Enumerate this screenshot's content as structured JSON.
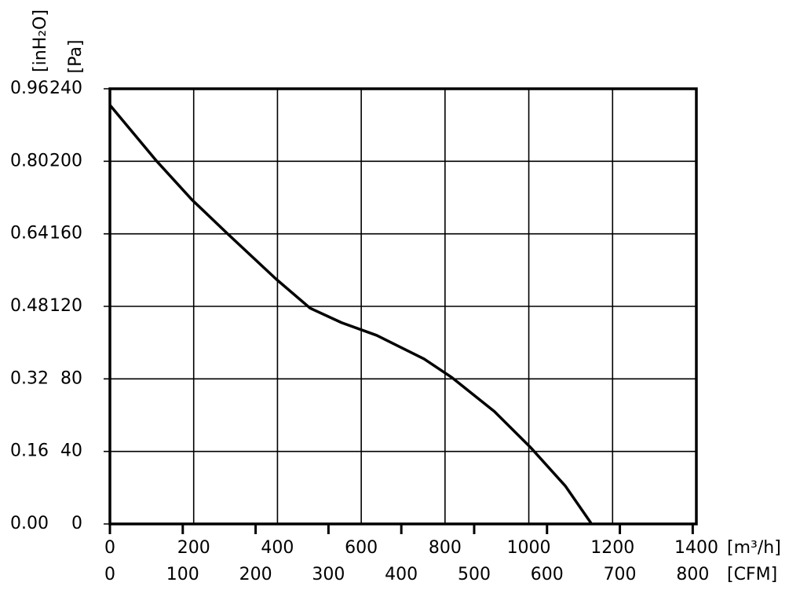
{
  "chart_data": {
    "type": "line",
    "y2_label": "[inH₂O]",
    "y_label": "[Pa]",
    "x_label": "[m³/h]",
    "x2_label": "[CFM]",
    "x": [
      0,
      112,
      195,
      281,
      397,
      478,
      553,
      637,
      750,
      815,
      918,
      1005,
      1087,
      1147,
      1149
    ],
    "series": [
      {
        "color": "#000000",
        "values": [
          231,
          200,
          179,
          160,
          135,
          119,
          111,
          104,
          91,
          81,
          62,
          42,
          21,
          1,
          0
        ]
      }
    ],
    "xlim": [
      0,
      1400
    ],
    "xticks": [
      0,
      200,
      400,
      600,
      800,
      1000,
      1200,
      1400
    ],
    "x2lim": [
      0,
      805
    ],
    "x2ticks": [
      0,
      100,
      200,
      300,
      400,
      500,
      600,
      700,
      800
    ],
    "ylim": [
      0,
      240
    ],
    "yticks": [
      0,
      40,
      80,
      120,
      160,
      200,
      240
    ],
    "y2lim": [
      0,
      0.96
    ],
    "y2ticks": [
      {
        "value": 0,
        "label": "0.00"
      },
      0.16,
      0.32,
      0.48,
      0.64,
      {
        "value": 0.8,
        "label": "0.80"
      },
      0.96
    ],
    "grid": true
  }
}
